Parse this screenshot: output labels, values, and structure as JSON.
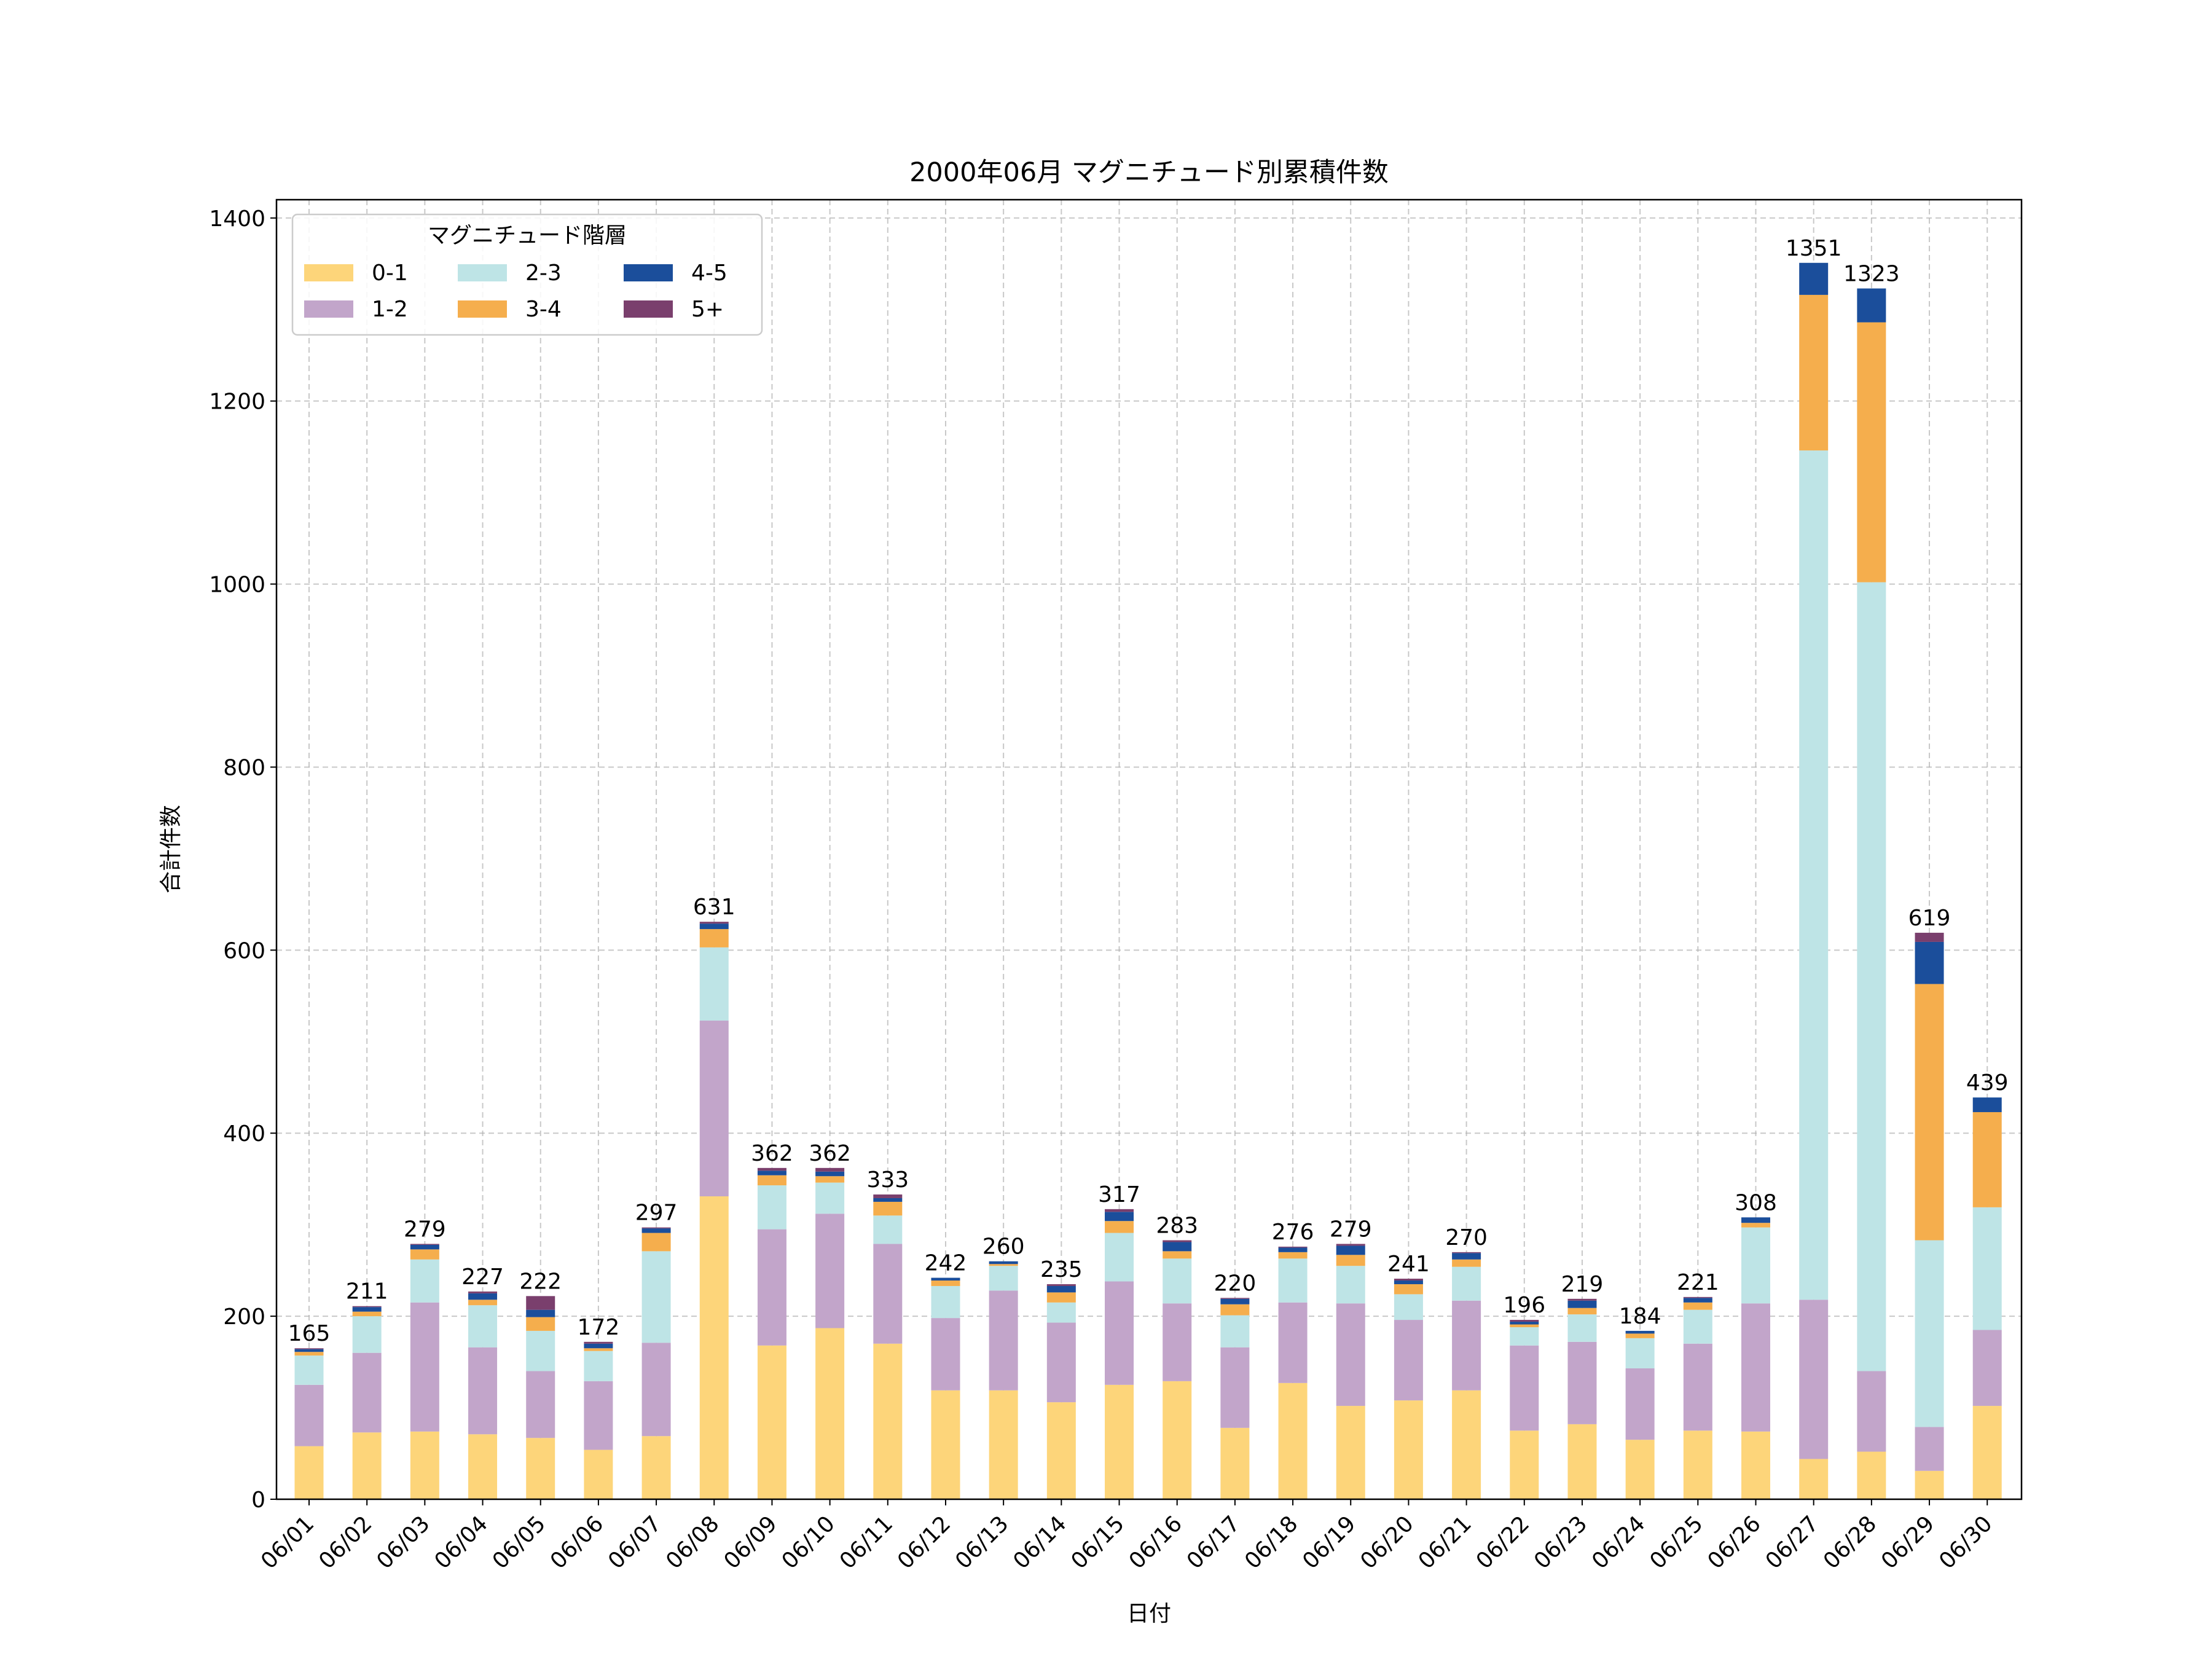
{
  "chart_data": {
    "type": "bar",
    "stacked": true,
    "title": "2000年06月 マグニチュード別累積件数",
    "xlabel": "日付",
    "ylabel": "合計件数",
    "ylim": [
      0,
      1420
    ],
    "yticks": [
      0,
      200,
      400,
      600,
      800,
      1000,
      1200,
      1400
    ],
    "grid": true,
    "legend": {
      "title": "マグニチュード階層",
      "placement": "top-left",
      "columns": 3
    },
    "categories": [
      "06/01",
      "06/02",
      "06/03",
      "06/04",
      "06/05",
      "06/06",
      "06/07",
      "06/08",
      "06/09",
      "06/10",
      "06/11",
      "06/12",
      "06/13",
      "06/14",
      "06/15",
      "06/16",
      "06/17",
      "06/18",
      "06/19",
      "06/20",
      "06/21",
      "06/22",
      "06/23",
      "06/24",
      "06/25",
      "06/26",
      "06/27",
      "06/28",
      "06/29",
      "06/30"
    ],
    "totals": [
      165,
      211,
      279,
      227,
      222,
      172,
      297,
      631,
      362,
      362,
      333,
      242,
      260,
      235,
      317,
      283,
      220,
      276,
      279,
      241,
      270,
      196,
      219,
      184,
      221,
      308,
      1351,
      1323,
      619,
      439
    ],
    "series": [
      {
        "name": "0-1",
        "color": "#fdd57a",
        "values": [
          58,
          73,
          74,
          71,
          67,
          54,
          69,
          331,
          168,
          187,
          170,
          119,
          119,
          106,
          125,
          129,
          78,
          127,
          102,
          108,
          119,
          75,
          82,
          65,
          75,
          74,
          44,
          52,
          31,
          102
        ]
      },
      {
        "name": "1-2",
        "color": "#c2a5ca",
        "values": [
          67,
          87,
          141,
          95,
          73,
          75,
          102,
          192,
          127,
          125,
          109,
          79,
          109,
          87,
          113,
          85,
          88,
          88,
          112,
          88,
          98,
          93,
          90,
          78,
          95,
          140,
          174,
          88,
          48,
          83
        ]
      },
      {
        "name": "2-3",
        "color": "#bee4e6",
        "values": [
          32,
          40,
          47,
          46,
          44,
          33,
          100,
          80,
          48,
          34,
          31,
          35,
          27,
          22,
          53,
          49,
          35,
          48,
          41,
          28,
          37,
          20,
          30,
          33,
          37,
          83,
          928,
          862,
          204,
          134
        ]
      },
      {
        "name": "3-4",
        "color": "#f5ae4d",
        "values": [
          4,
          5,
          11,
          6,
          15,
          3,
          20,
          20,
          11,
          7,
          15,
          6,
          2,
          11,
          13,
          8,
          12,
          7,
          12,
          11,
          8,
          3,
          7,
          5,
          8,
          5,
          170,
          284,
          280,
          104
        ]
      },
      {
        "name": "4-5",
        "color": "#1b4e9b",
        "values": [
          3,
          5,
          5,
          7,
          8,
          5,
          5,
          6,
          5,
          5,
          4,
          3,
          3,
          7,
          10,
          10,
          6,
          5,
          10,
          4,
          7,
          3,
          8,
          3,
          5,
          6,
          35,
          37,
          46,
          16
        ]
      },
      {
        "name": "5+",
        "color": "#7a3f6d",
        "values": [
          1,
          1,
          1,
          2,
          15,
          2,
          1,
          2,
          3,
          4,
          4,
          0,
          0,
          2,
          3,
          2,
          1,
          1,
          2,
          2,
          1,
          2,
          2,
          0,
          1,
          0,
          0,
          0,
          10,
          0
        ]
      }
    ]
  }
}
